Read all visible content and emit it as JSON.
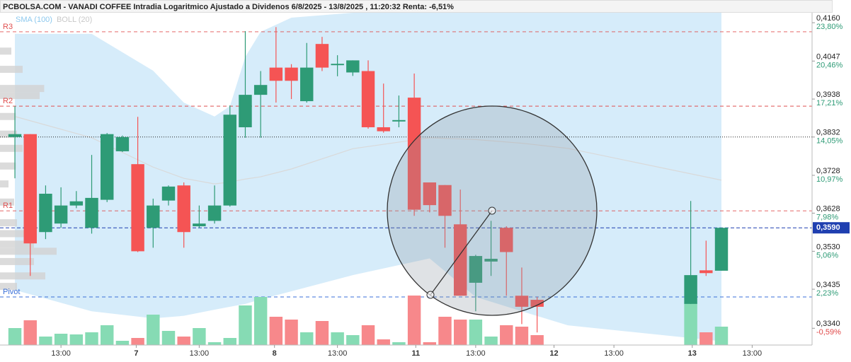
{
  "chart_data": {
    "type": "candlestick",
    "title": "PCBOLSA.COM - VANADI COFFEE Intradia Logaritmico Ajustado a Dividenos 6/8/2025 - 13/8/2025 , 11:20:32 Renta: -6,51%",
    "legend": [
      {
        "name": "SMA (100)",
        "color": "#8ec9ee"
      },
      {
        "name": "BOLL (20)",
        "color": "#c8c8c8"
      }
    ],
    "log_scale": true,
    "ylim": [
      0.33,
      0.419
    ],
    "xlim": [
      -0.97,
      51.9
    ],
    "yticks": [
      {
        "value": 0.416,
        "label": "0,4160"
      },
      {
        "value": 0.4047,
        "label": "0,4047"
      },
      {
        "value": 0.3938,
        "label": "0,3938"
      },
      {
        "value": 0.3832,
        "label": "0,3832"
      },
      {
        "value": 0.3728,
        "label": "0,3728"
      },
      {
        "value": 0.3628,
        "label": "0,3628"
      },
      {
        "value": 0.353,
        "label": "0,3530"
      },
      {
        "value": 0.3435,
        "label": "0,3435"
      },
      {
        "value": 0.334,
        "label": "0,3340"
      }
    ],
    "ytick_percent_labels": [
      "23,80%",
      "20,46%",
      "17,21%",
      "14,05%",
      "10,97%",
      "7,98%",
      "5,06%",
      "2,23%",
      "-0,59%"
    ],
    "ytick_percent_colors": [
      "#2e9b76",
      "#2e9b76",
      "#2e9b76",
      "#2e9b76",
      "#2e9b76",
      "#2e9b76",
      "#2e9b76",
      "#2e9b76",
      "#e04848"
    ],
    "xticks": [
      {
        "value": 3,
        "label": "13:00"
      },
      {
        "value": 7.9,
        "label": "7"
      },
      {
        "value": 12,
        "label": "13:00"
      },
      {
        "value": 16.9,
        "label": "8"
      },
      {
        "value": 21,
        "label": "13:00"
      },
      {
        "value": 26.1,
        "label": "11"
      },
      {
        "value": 30,
        "label": "13:00"
      },
      {
        "value": 35.1,
        "label": "12"
      },
      {
        "value": 39,
        "label": "13:00"
      },
      {
        "value": 44.1,
        "label": "13"
      },
      {
        "value": 48,
        "label": "13:00"
      }
    ],
    "up_color": "#2e9b76",
    "down_color": "#f55454",
    "volume_up_color": "#86dbb4",
    "volume_down_color": "#f7888b",
    "x": [
      0,
      1,
      2,
      3,
      4,
      5,
      6,
      7,
      8,
      9,
      10,
      11,
      12,
      13,
      14,
      15,
      16,
      17,
      18,
      19,
      20,
      21,
      22,
      23,
      24,
      25,
      26,
      27,
      28,
      29,
      30,
      31,
      32,
      33,
      34,
      44,
      45,
      46
    ],
    "open": [
      0.3832,
      0.384,
      0.3579,
      0.3601,
      0.3648,
      0.359,
      0.3663,
      0.3793,
      0.3758,
      0.359,
      0.3661,
      0.3701,
      0.3594,
      0.3608,
      0.3648,
      0.3859,
      0.395,
      0.4028,
      0.4028,
      0.3932,
      0.4097,
      0.4035,
      0.4014,
      0.4018,
      0.3859,
      0.3875,
      0.3942,
      0.3709,
      0.3702,
      0.3599,
      0.3451,
      0.3504,
      0.359,
      0.3419,
      0.3409,
      0.3399,
      0.3482,
      0.3481
    ],
    "high": [
      0.3918,
      0.384,
      0.3701,
      0.3696,
      0.3686,
      0.3783,
      0.3843,
      0.3836,
      0.3888,
      0.3666,
      0.3701,
      0.3709,
      0.3648,
      0.3701,
      0.392,
      0.4135,
      0.4018,
      0.4147,
      0.4038,
      0.41,
      0.4118,
      0.4064,
      0.4049,
      0.4049,
      0.3982,
      0.3948,
      0.4011,
      0.3709,
      0.3702,
      0.369,
      0.3521,
      0.3608,
      0.3594,
      0.3489,
      0.3416,
      0.366,
      0.3557,
      0.359
    ],
    "low": [
      0.372,
      0.3468,
      0.3561,
      0.359,
      0.3641,
      0.3575,
      0.3657,
      0.3791,
      0.3528,
      0.3539,
      0.3648,
      0.3539,
      0.359,
      0.3601,
      0.3645,
      0.383,
      0.383,
      0.3928,
      0.3938,
      0.3928,
      0.4018,
      0.4003,
      0.4004,
      0.3855,
      0.3844,
      0.3859,
      0.3621,
      0.363,
      0.3539,
      0.3419,
      0.3381,
      0.3468,
      0.3419,
      0.335,
      0.333,
      0.3399,
      0.3468,
      0.3481
    ],
    "close": [
      0.384,
      0.355,
      0.3679,
      0.3648,
      0.3659,
      0.3668,
      0.384,
      0.3832,
      0.353,
      0.3648,
      0.3698,
      0.3579,
      0.3601,
      0.3648,
      0.3894,
      0.395,
      0.3978,
      0.399,
      0.399,
      0.4028,
      0.4028,
      0.4039,
      0.4049,
      0.3859,
      0.3848,
      0.3879,
      0.3637,
      0.3649,
      0.3621,
      0.3419,
      0.3518,
      0.3511,
      0.3528,
      0.3392,
      0.3392,
      0.347,
      0.3475,
      0.359
    ],
    "volume": [
      24,
      35,
      12,
      16,
      15,
      18,
      28,
      6,
      10,
      43,
      20,
      12,
      24,
      4,
      10,
      56,
      68,
      40,
      36,
      18,
      34,
      18,
      14,
      28,
      8,
      4,
      70,
      4,
      40,
      36,
      36,
      12,
      28,
      26,
      14,
      60,
      18,
      26
    ],
    "volume_ylim": [
      0,
      100
    ],
    "bollinger": {
      "x": [
        0,
        5,
        9,
        11,
        13,
        14,
        15,
        16,
        18,
        22,
        27,
        30,
        33,
        36,
        46
      ],
      "upper": [
        0.4127,
        0.4127,
        0.4019,
        0.3928,
        0.3889,
        0.3918,
        0.4059,
        0.4133,
        0.4175,
        0.419,
        0.419,
        0.419,
        0.419,
        0.419,
        0.419
      ],
      "lower": [
        0.3433,
        0.3381,
        0.3364,
        0.337,
        0.3385,
        0.3392,
        0.3399,
        0.341,
        0.343,
        0.347,
        0.3512,
        0.3416,
        0.3381,
        0.3347,
        0.3309
      ],
      "middle": [
        0.3889,
        0.383,
        0.375,
        0.372,
        0.3705,
        0.371,
        0.3718,
        0.3724,
        0.3745,
        0.38,
        0.383,
        0.3825,
        0.3815,
        0.3801,
        0.3715
      ],
      "fill": "#d6ecfa",
      "line_color": "#d9d9d9"
    },
    "volume_profile": {
      "prices": [
        0.4076,
        0.4023,
        0.3968,
        0.3948,
        0.3889,
        0.384,
        0.3801,
        0.3753,
        0.3705,
        0.3657,
        0.3603,
        0.3575,
        0.3548,
        0.353,
        0.3504,
        0.3468,
        0.3442
      ],
      "values": [
        20,
        40,
        78,
        70,
        28,
        30,
        40,
        28,
        15,
        25,
        30,
        45,
        60,
        100,
        60,
        80,
        30
      ],
      "color": "#d2d2d2"
    },
    "levels": [
      {
        "name": "R3",
        "value": 0.4133,
        "color": "#e05050"
      },
      {
        "name": "R2",
        "value": 0.3918,
        "color": "#e05050"
      },
      {
        "name": "R1",
        "value": 0.3634,
        "color": "#e05050"
      },
      {
        "name": "Pivot",
        "value": 0.3416,
        "color": "#3a6fd8"
      }
    ],
    "reference_lines": [
      {
        "value": 0.3832,
        "color": "#222222"
      }
    ],
    "last_price": {
      "value": 0.359,
      "label": "0,3590",
      "color": "#1f3fb0"
    }
  }
}
